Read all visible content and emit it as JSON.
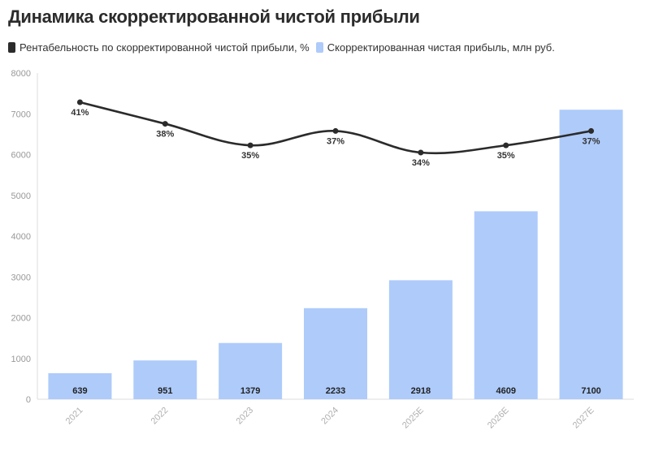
{
  "chart_data": {
    "type": "bar",
    "title": "Динамика скорректированной чистой прибыли",
    "categories": [
      "2021",
      "2022",
      "2023",
      "2024",
      "2025E",
      "2026E",
      "2027E"
    ],
    "series": [
      {
        "name": "Скорректированная чистая прибыль, млн руб.",
        "type": "bar",
        "color": "#aecbfa",
        "values": [
          639,
          951,
          1379,
          2233,
          2918,
          4609,
          7100
        ],
        "labels": [
          "639",
          "951",
          "1379",
          "2233",
          "2918",
          "4609",
          "7100"
        ]
      },
      {
        "name": "Рентабельность по скорректированной чистой прибыли, %",
        "type": "line",
        "color": "#2b2b2b",
        "values": [
          41,
          38,
          35,
          37,
          34,
          35,
          37
        ],
        "labels": [
          "41%",
          "38%",
          "35%",
          "37%",
          "34%",
          "35%",
          "37%"
        ]
      }
    ],
    "ylim": [
      0,
      8000
    ],
    "yticks": [
      "0",
      "1000",
      "2000",
      "3000",
      "4000",
      "5000",
      "6000",
      "7000",
      "8000"
    ],
    "grid": false,
    "legend_position": "top-left"
  }
}
